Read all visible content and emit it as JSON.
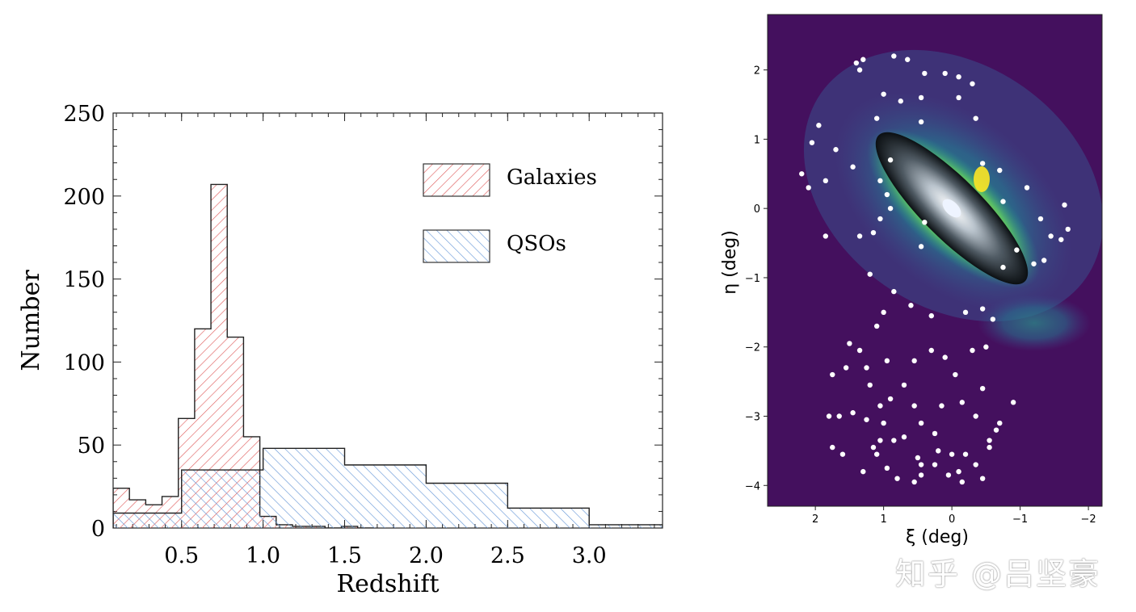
{
  "chart_data": [
    {
      "type": "histogram",
      "title": "",
      "xlabel": "Redshift",
      "ylabel": "Number",
      "xlim": [
        0.08,
        3.45
      ],
      "ylim": [
        0,
        250
      ],
      "xticks": [
        "0.5",
        "1.0",
        "1.5",
        "2.0",
        "2.5",
        "3.0"
      ],
      "xtick_values": [
        0.5,
        1.0,
        1.5,
        2.0,
        2.5,
        3.0
      ],
      "yticks": [
        "0",
        "50",
        "100",
        "150",
        "200",
        "250"
      ],
      "ytick_values": [
        0,
        50,
        100,
        150,
        200,
        250
      ],
      "legend_position": "top-right",
      "series": [
        {
          "name": "Galaxies",
          "color": "#e06060",
          "hatch": "forward",
          "bins": [
            [
              0.08,
              0.18,
              24
            ],
            [
              0.18,
              0.28,
              17
            ],
            [
              0.28,
              0.38,
              14
            ],
            [
              0.38,
              0.48,
              19
            ],
            [
              0.48,
              0.58,
              66
            ],
            [
              0.58,
              0.68,
              120
            ],
            [
              0.68,
              0.78,
              207
            ],
            [
              0.78,
              0.88,
              115
            ],
            [
              0.88,
              0.98,
              55
            ],
            [
              0.98,
              1.08,
              7
            ],
            [
              1.08,
              1.18,
              2
            ],
            [
              1.18,
              1.28,
              1
            ],
            [
              1.28,
              1.38,
              1
            ],
            [
              1.38,
              1.48,
              0
            ],
            [
              1.48,
              1.58,
              1
            ],
            [
              1.58,
              1.68,
              0
            ]
          ]
        },
        {
          "name": "QSOs",
          "color": "#6a9ad8",
          "hatch": "back",
          "bins": [
            [
              0.08,
              0.5,
              9
            ],
            [
              0.5,
              1.0,
              35
            ],
            [
              1.0,
              1.5,
              48
            ],
            [
              1.5,
              2.0,
              38
            ],
            [
              2.0,
              2.5,
              27
            ],
            [
              2.5,
              3.0,
              12
            ],
            [
              3.0,
              3.45,
              2
            ]
          ]
        }
      ]
    },
    {
      "type": "heatmap",
      "title": "",
      "xlabel": "ξ (deg)",
      "ylabel": "η (deg)",
      "xlim": [
        2.7,
        -2.2
      ],
      "ylim": [
        -4.3,
        2.8
      ],
      "xticks": [
        "2",
        "1",
        "0",
        "−1",
        "−2"
      ],
      "xtick_values": [
        2,
        1,
        0,
        -1,
        -2
      ],
      "yticks": [
        "2",
        "1",
        "0",
        "−1",
        "−2",
        "−3",
        "−4"
      ],
      "ytick_values": [
        2,
        1,
        0,
        -1,
        -2,
        -3,
        -4
      ],
      "colormap": [
        "#440154",
        "#3b528b",
        "#21918c",
        "#5ec962",
        "#fde725"
      ],
      "galaxy_center": [
        0.05,
        0.0
      ],
      "sources": [
        [
          1.4,
          2.1
        ],
        [
          1.3,
          2.15
        ],
        [
          1.35,
          2.0
        ],
        [
          0.85,
          2.2
        ],
        [
          0.65,
          2.15
        ],
        [
          0.4,
          1.95
        ],
        [
          0.1,
          1.95
        ],
        [
          -0.1,
          1.9
        ],
        [
          -0.3,
          1.8
        ],
        [
          -0.1,
          1.6
        ],
        [
          0.45,
          1.6
        ],
        [
          1.0,
          1.65
        ],
        [
          0.75,
          1.55
        ],
        [
          1.1,
          1.3
        ],
        [
          0.45,
          1.25
        ],
        [
          -0.35,
          1.3
        ],
        [
          1.95,
          1.2
        ],
        [
          2.05,
          0.95
        ],
        [
          1.7,
          0.85
        ],
        [
          1.45,
          0.6
        ],
        [
          2.2,
          0.5
        ],
        [
          2.1,
          0.3
        ],
        [
          1.85,
          0.4
        ],
        [
          0.9,
          0.7
        ],
        [
          1.05,
          0.4
        ],
        [
          0.95,
          0.2
        ],
        [
          0.9,
          0.0
        ],
        [
          1.05,
          -0.15
        ],
        [
          1.15,
          -0.35
        ],
        [
          0.4,
          -0.2
        ],
        [
          0.45,
          -0.55
        ],
        [
          -0.45,
          0.65
        ],
        [
          -0.7,
          0.55
        ],
        [
          -0.75,
          0.1
        ],
        [
          -1.1,
          0.3
        ],
        [
          -1.3,
          -0.15
        ],
        [
          -1.45,
          -0.4
        ],
        [
          -1.6,
          -0.45
        ],
        [
          -1.65,
          0.05
        ],
        [
          -1.7,
          -0.3
        ],
        [
          -0.95,
          -0.6
        ],
        [
          -0.75,
          -0.85
        ],
        [
          -1.2,
          -0.8
        ],
        [
          -1.35,
          -0.75
        ],
        [
          1.85,
          -0.4
        ],
        [
          1.35,
          -0.4
        ],
        [
          1.2,
          -0.95
        ],
        [
          0.85,
          -1.2
        ],
        [
          1.0,
          -1.5
        ],
        [
          1.1,
          -1.7
        ],
        [
          0.6,
          -1.4
        ],
        [
          0.3,
          -1.55
        ],
        [
          -0.2,
          -1.5
        ],
        [
          -0.45,
          -1.45
        ],
        [
          -0.6,
          -1.6
        ],
        [
          1.5,
          -1.95
        ],
        [
          1.35,
          -2.05
        ],
        [
          1.55,
          -2.3
        ],
        [
          1.75,
          -2.4
        ],
        [
          1.25,
          -2.3
        ],
        [
          1.2,
          -2.55
        ],
        [
          0.95,
          -2.2
        ],
        [
          0.55,
          -2.2
        ],
        [
          0.3,
          -2.05
        ],
        [
          0.1,
          -2.15
        ],
        [
          -0.3,
          -2.05
        ],
        [
          -0.5,
          -2.0
        ],
        [
          0.7,
          -2.55
        ],
        [
          0.55,
          -2.85
        ],
        [
          0.9,
          -2.75
        ],
        [
          1.05,
          -2.85
        ],
        [
          1.0,
          -3.1
        ],
        [
          1.25,
          -3.05
        ],
        [
          1.45,
          -2.95
        ],
        [
          1.65,
          -3.0
        ],
        [
          1.8,
          -3.0
        ],
        [
          0.7,
          -3.3
        ],
        [
          0.85,
          -3.35
        ],
        [
          1.05,
          -3.35
        ],
        [
          1.15,
          -3.45
        ],
        [
          1.75,
          -3.45
        ],
        [
          0.45,
          -3.1
        ],
        [
          0.25,
          -3.25
        ],
        [
          0.2,
          -3.5
        ],
        [
          0.5,
          -3.6
        ],
        [
          0.45,
          -3.7
        ],
        [
          0.25,
          -3.7
        ],
        [
          0.0,
          -3.55
        ],
        [
          -0.2,
          -3.55
        ],
        [
          -0.35,
          -3.7
        ],
        [
          -0.1,
          -3.8
        ],
        [
          -0.15,
          -3.95
        ],
        [
          0.05,
          -3.85
        ],
        [
          0.45,
          -3.85
        ],
        [
          0.55,
          -3.95
        ],
        [
          0.95,
          -3.75
        ],
        [
          1.1,
          -3.55
        ],
        [
          -0.45,
          -3.9
        ],
        [
          -0.55,
          -3.35
        ],
        [
          -0.65,
          -3.2
        ],
        [
          -0.7,
          -3.1
        ],
        [
          -0.35,
          -3.0
        ],
        [
          -0.15,
          -2.8
        ],
        [
          0.15,
          -2.85
        ],
        [
          -0.45,
          -2.6
        ],
        [
          -0.05,
          -2.4
        ],
        [
          -0.9,
          -2.8
        ],
        [
          1.6,
          -3.55
        ],
        [
          1.3,
          -3.8
        ],
        [
          0.8,
          -3.9
        ],
        [
          -0.55,
          -3.45
        ]
      ]
    }
  ],
  "watermark": "知乎 @吕坚豪"
}
